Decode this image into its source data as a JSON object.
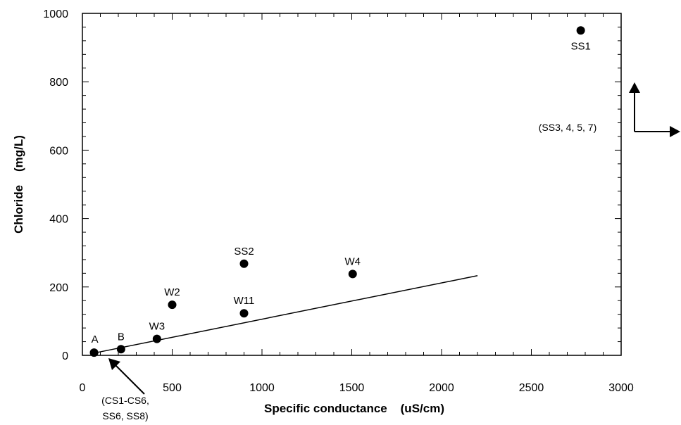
{
  "chart_data": {
    "type": "scatter",
    "title": "",
    "xlabel": "Specific conductance    (uS/cm)",
    "ylabel": "Chloride    (mg/L)",
    "xlim": [
      0,
      3000
    ],
    "ylim": [
      0,
      1000
    ],
    "xticks": [
      0,
      500,
      1000,
      1500,
      2000,
      2500,
      3000
    ],
    "yticks": [
      0,
      200,
      400,
      600,
      800,
      1000
    ],
    "grid": false,
    "points": [
      {
        "label": "A",
        "x": 65,
        "y": 8
      },
      {
        "label": "B",
        "x": 215,
        "y": 18
      },
      {
        "label": "W3",
        "x": 415,
        "y": 48
      },
      {
        "label": "W2",
        "x": 500,
        "y": 148
      },
      {
        "label": "W11",
        "x": 900,
        "y": 123
      },
      {
        "label": "SS2",
        "x": 900,
        "y": 268
      },
      {
        "label": "W4",
        "x": 1505,
        "y": 238
      },
      {
        "label": "SS1",
        "x": 2775,
        "y": 950
      }
    ],
    "trendline": {
      "x": [
        50,
        2200
      ],
      "y": [
        5,
        233
      ]
    },
    "annotations": {
      "bottom_note_line1": "(CS1-CS6,",
      "bottom_note_line2": "SS6, SS8)",
      "offchart_note": "(SS3, 4, 5, 7)"
    }
  }
}
